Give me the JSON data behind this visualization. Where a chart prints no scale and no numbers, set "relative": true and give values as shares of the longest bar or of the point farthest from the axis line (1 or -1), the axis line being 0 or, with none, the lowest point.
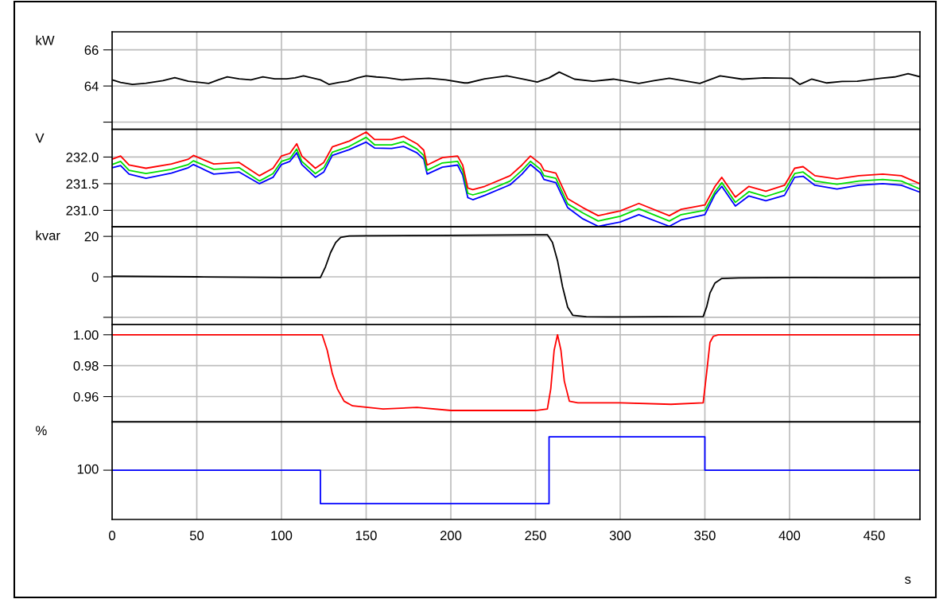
{
  "chart_data": [
    {
      "type": "line",
      "ylabel": "kW",
      "xlim": [
        0,
        477
      ],
      "xticks": [
        0,
        50,
        100,
        150,
        200,
        250,
        300,
        350,
        400,
        450
      ],
      "ylim": [
        61.6,
        67
      ],
      "yticks": [
        {
          "value": 62,
          "label": null
        },
        64,
        66
      ],
      "grid": true,
      "tick_labels": "y",
      "x": [
        0,
        5,
        12,
        20,
        30,
        37,
        45,
        52,
        57,
        63,
        68,
        75,
        82,
        89,
        96,
        103,
        108,
        113,
        118,
        123,
        128,
        134,
        139,
        145,
        150,
        156,
        162,
        171,
        180,
        187,
        197,
        208,
        210,
        220,
        233,
        242,
        251,
        258,
        264,
        273,
        284,
        296,
        311,
        320,
        329,
        347,
        359,
        372,
        385,
        401,
        406,
        413,
        422,
        431,
        440,
        454,
        462,
        470,
        477
      ],
      "series": [
        {
          "color": "#000000",
          "values": [
            64.34,
            64.2,
            64.09,
            64.15,
            64.3,
            64.46,
            64.26,
            64.2,
            64.14,
            64.35,
            64.51,
            64.4,
            64.34,
            64.51,
            64.4,
            64.4,
            64.45,
            64.56,
            64.45,
            64.34,
            64.09,
            64.2,
            64.26,
            64.45,
            64.56,
            64.5,
            64.46,
            64.34,
            64.4,
            64.43,
            64.34,
            64.17,
            64.17,
            64.4,
            64.56,
            64.4,
            64.22,
            64.45,
            64.77,
            64.38,
            64.26,
            64.38,
            64.14,
            64.3,
            64.43,
            64.14,
            64.56,
            64.38,
            64.45,
            64.43,
            64.09,
            64.38,
            64.17,
            64.25,
            64.26,
            64.43,
            64.5,
            64.68,
            64.51
          ]
        }
      ]
    },
    {
      "type": "line",
      "ylabel": "V",
      "xlim": [
        0,
        477
      ],
      "xticks": [
        0,
        50,
        100,
        150,
        200,
        250,
        300,
        350,
        400,
        450
      ],
      "ylim": [
        230.69,
        232.52
      ],
      "yticks": [
        {
          "value": 231,
          "label": "231.0"
        },
        {
          "value": 231.5,
          "label": "231.5"
        },
        {
          "value": 232,
          "label": "232.0"
        }
      ],
      "grid": true,
      "tick_labels": "y",
      "x": [
        0,
        5,
        10,
        20,
        35,
        45,
        48,
        60,
        75,
        87,
        95,
        100,
        105,
        109,
        112,
        120,
        125,
        130,
        140,
        150,
        155,
        165,
        172,
        180,
        184,
        186,
        195,
        204,
        207,
        210,
        213,
        220,
        235,
        242,
        247,
        253,
        255,
        262,
        269,
        278,
        287,
        300,
        311,
        329,
        336,
        350,
        356,
        360,
        368,
        376,
        386,
        397,
        403,
        408,
        415,
        428,
        441,
        455,
        466,
        477
      ],
      "series": [
        {
          "color": "#0000ff",
          "values": [
            231.8,
            231.84,
            231.68,
            231.6,
            231.7,
            231.8,
            231.86,
            231.68,
            231.72,
            231.5,
            231.62,
            231.86,
            231.92,
            232.08,
            231.86,
            231.62,
            231.72,
            232.03,
            232.14,
            232.28,
            232.17,
            232.16,
            232.2,
            232.08,
            231.96,
            231.68,
            231.81,
            231.85,
            231.66,
            231.24,
            231.2,
            231.28,
            231.48,
            231.68,
            231.86,
            231.7,
            231.58,
            231.52,
            231.05,
            230.84,
            230.7,
            230.78,
            230.92,
            230.7,
            230.82,
            230.92,
            231.3,
            231.45,
            231.08,
            231.27,
            231.18,
            231.28,
            231.62,
            231.64,
            231.47,
            231.4,
            231.47,
            231.5,
            231.47,
            231.34
          ]
        },
        {
          "color": "#00dd00",
          "values": [
            231.86,
            231.92,
            231.75,
            231.69,
            231.77,
            231.86,
            231.93,
            231.77,
            231.8,
            231.55,
            231.69,
            231.92,
            231.97,
            232.15,
            231.92,
            231.69,
            231.8,
            232.09,
            232.2,
            232.37,
            232.23,
            232.23,
            232.29,
            232.15,
            232.03,
            231.75,
            231.89,
            231.92,
            231.75,
            231.32,
            231.29,
            231.35,
            231.55,
            231.75,
            231.92,
            231.77,
            231.65,
            231.6,
            231.12,
            230.95,
            230.8,
            230.89,
            231.03,
            230.8,
            230.92,
            231.0,
            231.35,
            231.52,
            231.15,
            231.35,
            231.26,
            231.37,
            231.69,
            231.72,
            231.55,
            231.49,
            231.55,
            231.58,
            231.55,
            231.4
          ]
        },
        {
          "color": "#ff0000",
          "values": [
            231.96,
            232.02,
            231.85,
            231.79,
            231.87,
            231.96,
            232.03,
            231.87,
            231.9,
            231.65,
            231.79,
            232.02,
            232.07,
            232.25,
            232.02,
            231.79,
            231.9,
            232.19,
            232.3,
            232.47,
            232.33,
            232.33,
            232.39,
            232.25,
            232.13,
            231.85,
            231.99,
            232.02,
            231.85,
            231.42,
            231.39,
            231.45,
            231.65,
            231.85,
            232.02,
            231.87,
            231.75,
            231.7,
            231.22,
            231.05,
            230.9,
            230.99,
            231.13,
            230.9,
            231.02,
            231.1,
            231.45,
            231.62,
            231.25,
            231.45,
            231.36,
            231.47,
            231.79,
            231.82,
            231.65,
            231.59,
            231.65,
            231.68,
            231.65,
            231.5
          ]
        }
      ]
    },
    {
      "type": "line",
      "ylabel": "kvar",
      "xlim": [
        0,
        477
      ],
      "xticks": [
        0,
        50,
        100,
        150,
        200,
        250,
        300,
        350,
        400,
        450
      ],
      "ylim": [
        -23.5,
        24.7
      ],
      "yticks": [
        {
          "value": -20,
          "label": null
        },
        0,
        20
      ],
      "grid": true,
      "tick_labels": "y",
      "x": [
        0,
        50,
        100,
        123,
        126,
        129,
        132,
        135,
        140,
        150,
        200,
        250,
        257,
        260,
        263,
        266,
        269,
        272,
        280,
        300,
        349,
        351,
        353,
        356,
        360,
        370,
        400,
        450,
        477
      ],
      "series": [
        {
          "color": "#000000",
          "values": [
            0.3,
            0,
            -0.3,
            -0.3,
            5,
            12,
            17,
            19.5,
            20.2,
            20.3,
            20.5,
            20.8,
            20.8,
            17,
            8,
            -5,
            -15,
            -19,
            -19.7,
            -19.8,
            -19.6,
            -15,
            -8,
            -3,
            -0.8,
            -0.5,
            -0.3,
            -0.4,
            -0.3
          ]
        }
      ]
    },
    {
      "type": "line",
      "xlim": [
        0,
        477
      ],
      "xticks": [
        0,
        50,
        100,
        150,
        200,
        250,
        300,
        350,
        400,
        450
      ],
      "ylim": [
        0.9436,
        1.0067
      ],
      "yticks": [
        {
          "value": 0.96,
          "label": "0.96"
        },
        {
          "value": 0.98,
          "label": "0.98"
        },
        {
          "value": 1,
          "label": "1.00"
        }
      ],
      "grid": true,
      "tick_labels": "y",
      "x": [
        0,
        50,
        100,
        124,
        127,
        130,
        133,
        137,
        142,
        160,
        180,
        200,
        230,
        250,
        257,
        259,
        261,
        263,
        265,
        267,
        270,
        275,
        300,
        330,
        349,
        351,
        353,
        355,
        358,
        362,
        400,
        477
      ],
      "series": [
        {
          "color": "#ff0000",
          "values": [
            1,
            1,
            1,
            1,
            0.99,
            0.975,
            0.965,
            0.957,
            0.954,
            0.952,
            0.953,
            0.951,
            0.951,
            0.951,
            0.952,
            0.965,
            0.99,
            1,
            0.99,
            0.97,
            0.957,
            0.956,
            0.956,
            0.955,
            0.956,
            0.975,
            0.995,
            0.999,
            1,
            1,
            1,
            1
          ]
        }
      ]
    },
    {
      "type": "step",
      "relative": true,
      "ylabel": "%",
      "xlabel": "s",
      "xlim": [
        0,
        477
      ],
      "xticks": [
        0,
        50,
        100,
        150,
        200,
        250,
        300,
        350,
        400,
        450
      ],
      "grid": true,
      "annotations": [
        {
          "text": "100",
          "x": 0,
          "y": 0.596
        }
      ],
      "x": [
        0,
        123,
        258,
        350,
        477
      ],
      "series": [
        {
          "color": "#0000ff",
          "values": [
            0.596,
            0.192,
            1,
            0.596,
            0.596
          ]
        }
      ]
    }
  ]
}
